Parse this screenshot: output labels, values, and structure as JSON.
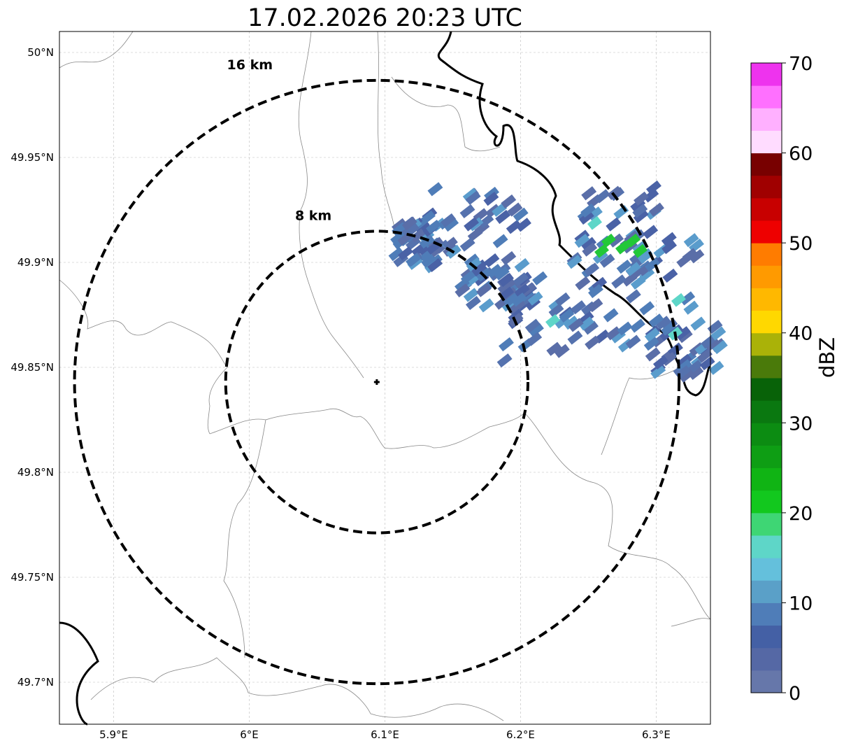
{
  "title": "17.02.2026 20:23 UTC",
  "map": {
    "lon_range": [
      5.86,
      6.34
    ],
    "lat_range": [
      49.68,
      50.01
    ],
    "x_ticks": [
      {
        "value": 5.9,
        "label": "5.9°E"
      },
      {
        "value": 6.0,
        "label": "6°E"
      },
      {
        "value": 6.1,
        "label": "6.1°E"
      },
      {
        "value": 6.2,
        "label": "6.2°E"
      },
      {
        "value": 6.3,
        "label": "6.3°E"
      }
    ],
    "y_ticks": [
      {
        "value": 50.0,
        "label": "50°N"
      },
      {
        "value": 49.95,
        "label": "49.95°N"
      },
      {
        "value": 49.9,
        "label": "49.9°N"
      },
      {
        "value": 49.85,
        "label": "49.85°N"
      },
      {
        "value": 49.8,
        "label": "49.8°N"
      },
      {
        "value": 49.75,
        "label": "49.75°N"
      },
      {
        "value": 49.7,
        "label": "49.7°N"
      }
    ],
    "gridlines": true,
    "radar_site": {
      "lon": 6.094,
      "lat": 49.843
    },
    "range_rings": [
      {
        "radius_km": 8,
        "label": "8 km"
      },
      {
        "radius_km": 16,
        "label": "16 km"
      }
    ]
  },
  "colorbar": {
    "unit": "dBZ",
    "min": 0,
    "max": 70,
    "tick_labels": [
      {
        "value": 0,
        "label": "0"
      },
      {
        "value": 10,
        "label": "10"
      },
      {
        "value": 20,
        "label": "20"
      },
      {
        "value": 30,
        "label": "30"
      },
      {
        "value": 40,
        "label": "40"
      },
      {
        "value": 50,
        "label": "50"
      },
      {
        "value": 60,
        "label": "60"
      },
      {
        "value": 70,
        "label": "70"
      }
    ],
    "colors": [
      "#6677aa",
      "#5568a5",
      "#4460a5",
      "#4f7db8",
      "#5aa0c8",
      "#64c0dc",
      "#5ed6c8",
      "#3ed674",
      "#12c81e",
      "#10b414",
      "#0e9e14",
      "#0c8c12",
      "#0a7810",
      "#086208",
      "#4a7a0a",
      "#aab208",
      "#ffd800",
      "#ffb800",
      "#ff9a00",
      "#ff7c00",
      "#ee0000",
      "#c80000",
      "#a00000",
      "#780000",
      "#ffdcff",
      "#ffb0ff",
      "#ff70ff",
      "#ee33ee"
    ]
  }
}
